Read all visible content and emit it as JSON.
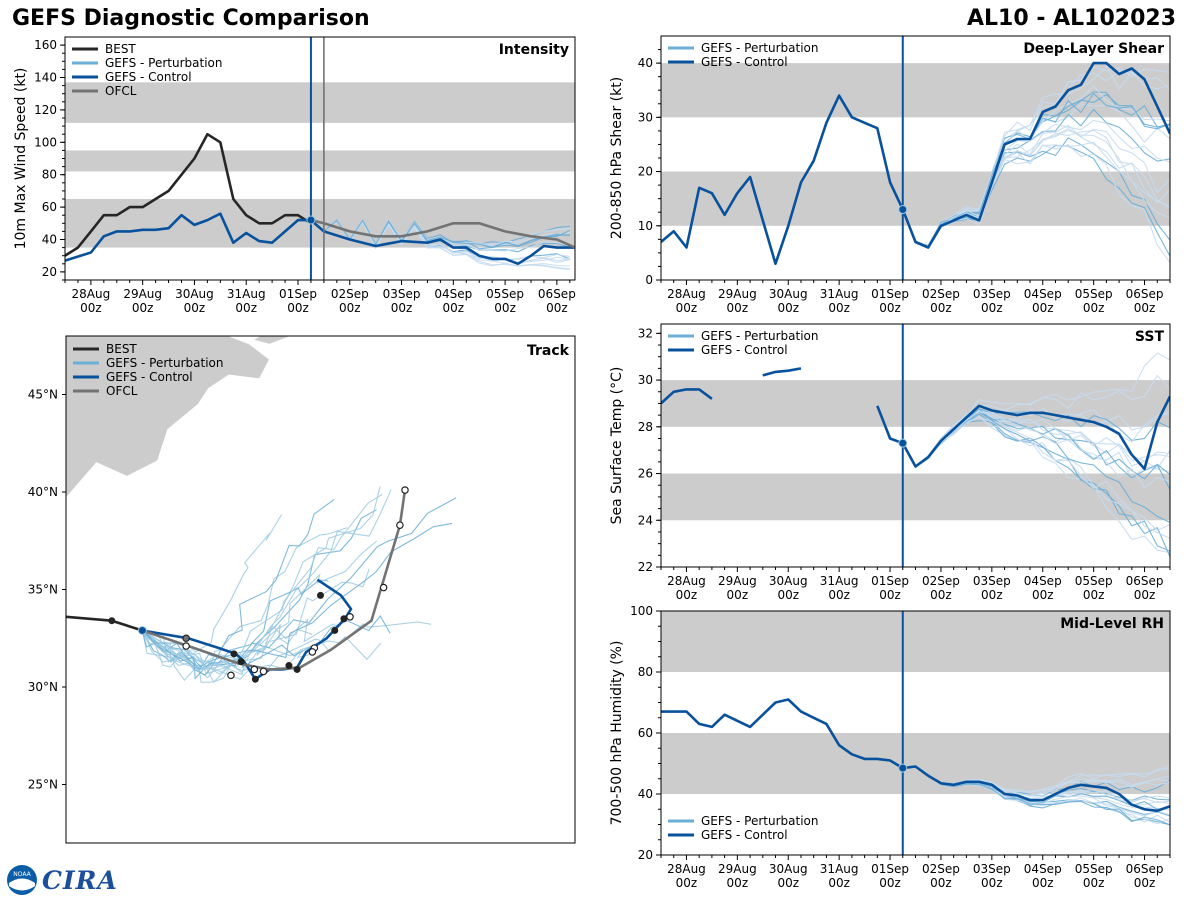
{
  "header": {
    "title_left": "GEFS Diagnostic Comparison",
    "title_right": "AL10 - AL102023"
  },
  "logo": {
    "text": "CIRA",
    "badge": "NOAA"
  },
  "colors": {
    "best": "#262626",
    "pert": "#6baed6",
    "pert_light": "#c6dbef",
    "control": "#08519c",
    "ofcl": "#737373",
    "band": "#cccccc"
  },
  "legend_labels": {
    "best": "BEST",
    "pert": "GEFS - Perturbation",
    "control": "GEFS - Control",
    "ofcl": "OFCL"
  },
  "time_ticks": [
    {
      "day": "28Aug",
      "hour": "00z",
      "t": 0
    },
    {
      "day": "29Aug",
      "hour": "00z",
      "t": 1
    },
    {
      "day": "30Aug",
      "hour": "00z",
      "t": 2
    },
    {
      "day": "31Aug",
      "hour": "00z",
      "t": 3
    },
    {
      "day": "01Sep",
      "hour": "00z",
      "t": 4
    },
    {
      "day": "02Sep",
      "hour": "00z",
      "t": 5
    },
    {
      "day": "03Sep",
      "hour": "00z",
      "t": 6
    },
    {
      "day": "04Sep",
      "hour": "00z",
      "t": 7
    },
    {
      "day": "05Sep",
      "hour": "00z",
      "t": 8
    },
    {
      "day": "06Sep",
      "hour": "00z",
      "t": 9
    }
  ],
  "chart_data": [
    {
      "id": "intensity",
      "type": "line",
      "title": "Intensity",
      "ylabel": "10m Max Wind Speed (kt)",
      "xlim": [
        -0.5,
        9.35
      ],
      "ylim": [
        15,
        165
      ],
      "yticks": [
        20,
        40,
        60,
        80,
        100,
        120,
        140,
        160
      ],
      "bands": [
        [
          35,
          65
        ],
        [
          82,
          95
        ],
        [
          112,
          137
        ]
      ],
      "init_t": 4.25,
      "ofcl_line_t": 4.5,
      "series": [
        {
          "name": "BEST",
          "x": [
            -0.5,
            -0.25,
            0,
            0.25,
            0.5,
            0.75,
            1,
            1.25,
            1.5,
            1.75,
            2,
            2.25,
            2.5,
            2.75,
            3,
            3.25,
            3.5,
            3.75,
            4,
            4.25
          ],
          "y": [
            30,
            35,
            45,
            55,
            55,
            60,
            60,
            65,
            70,
            80,
            90,
            105,
            100,
            65,
            55,
            50,
            50,
            55,
            55,
            50
          ]
        },
        {
          "name": "GEFS - Control",
          "x": [
            -0.5,
            0,
            0.25,
            0.5,
            0.75,
            1,
            1.25,
            1.5,
            1.75,
            2,
            2.25,
            2.5,
            2.75,
            3,
            3.25,
            3.5,
            3.75,
            4,
            4.25,
            4.5,
            5,
            5.5,
            6,
            6.5,
            6.75,
            7,
            7.25,
            7.5,
            7.75,
            8,
            8.25,
            8.5,
            8.75,
            9,
            9.35
          ],
          "y": [
            27,
            32,
            42,
            45,
            45,
            46,
            46,
            47,
            55,
            49,
            52,
            56,
            38,
            44,
            39,
            38,
            45,
            52,
            52,
            45,
            40,
            36,
            39,
            38,
            40,
            35,
            35,
            30,
            28,
            28,
            25,
            30,
            36,
            35,
            35
          ]
        },
        {
          "name": "OFCL",
          "x": [
            4.25,
            4.5,
            5,
            5.5,
            6,
            6.5,
            7,
            7.5,
            8,
            8.5,
            9,
            9.35
          ],
          "y": [
            52,
            50,
            45,
            42,
            42,
            45,
            50,
            50,
            45,
            42,
            40,
            35
          ]
        },
        {
          "name": "GEFS - Perturbation",
          "members": 16,
          "start_t": 4.25,
          "start_y": 52,
          "end_t": 9.35,
          "spread": [
            20,
            50
          ]
        }
      ]
    },
    {
      "id": "shear",
      "type": "line",
      "title": "Deep-Layer Shear",
      "ylabel": "200-850 hPa Shear (kt)",
      "xlim": [
        -0.5,
        9.5
      ],
      "ylim": [
        0,
        45
      ],
      "yticks": [
        0,
        10,
        20,
        30,
        40
      ],
      "bands": [
        [
          10,
          20
        ],
        [
          30,
          40
        ]
      ],
      "init_t": 4.25,
      "series": [
        {
          "name": "GEFS - Control",
          "x": [
            -0.5,
            -0.25,
            0,
            0.25,
            0.5,
            0.75,
            1,
            1.25,
            1.5,
            1.75,
            2,
            2.25,
            2.5,
            2.75,
            3,
            3.25,
            3.5,
            3.75,
            4,
            4.25,
            4.5,
            4.75,
            5,
            5.25,
            5.5,
            5.75,
            6,
            6.25,
            6.5,
            6.75,
            7,
            7.25,
            7.5,
            7.75,
            8,
            8.25,
            8.5,
            8.75,
            9,
            9.25,
            9.5
          ],
          "y": [
            7,
            9,
            6,
            17,
            16,
            12,
            16,
            19,
            11,
            3,
            10,
            18,
            22,
            29,
            34,
            30,
            29,
            28,
            18,
            13,
            7,
            6,
            10,
            11,
            12,
            11,
            18,
            25,
            26,
            26,
            31,
            32,
            35,
            36,
            40,
            40,
            38,
            39,
            37,
            32,
            27
          ]
        },
        {
          "name": "GEFS - Perturbation",
          "members": 18,
          "start_t": 4.25,
          "start_y": 13,
          "end_t": 9.5,
          "spread": [
            5,
            44
          ]
        }
      ]
    },
    {
      "id": "sst",
      "type": "line",
      "title": "SST",
      "ylabel": "Sea Surface Temp (°C)",
      "xlim": [
        -0.5,
        9.5
      ],
      "ylim": [
        22,
        32.4
      ],
      "yticks": [
        22,
        24,
        26,
        28,
        30,
        32
      ],
      "bands": [
        [
          24,
          26
        ],
        [
          28,
          30
        ]
      ],
      "init_t": 4.25,
      "series": [
        {
          "name": "GEFS - Control",
          "segments": [
            {
              "x": [
                -0.5,
                -0.25,
                0,
                0.25,
                0.5
              ],
              "y": [
                29.0,
                29.5,
                29.6,
                29.6,
                29.2
              ]
            },
            {
              "x": [
                1.5,
                1.75,
                2,
                2.25
              ],
              "y": [
                30.2,
                30.35,
                30.4,
                30.5
              ]
            },
            {
              "x": [
                3.75,
                4,
                4.25,
                4.5,
                4.75,
                5,
                5.25,
                5.5,
                5.75,
                6,
                6.25,
                6.5,
                6.75,
                7,
                7.25,
                7.5,
                7.75,
                8,
                8.25,
                8.5,
                8.75,
                9,
                9.25,
                9.5
              ],
              "y": [
                28.9,
                27.5,
                27.3,
                26.3,
                26.7,
                27.4,
                27.9,
                28.4,
                28.9,
                28.7,
                28.6,
                28.5,
                28.6,
                28.6,
                28.5,
                28.4,
                28.3,
                28.2,
                28.0,
                27.7,
                26.8,
                26.2,
                28.2,
                29.3
              ]
            }
          ]
        },
        {
          "name": "GEFS - Perturbation",
          "members": 18,
          "start_t": 4.25,
          "start_y": 27.3,
          "end_t": 9.5,
          "spread": [
            22.2,
            31.2
          ]
        }
      ]
    },
    {
      "id": "rh",
      "type": "line",
      "title": "Mid-Level RH",
      "ylabel": "700-500 hPa Humidity (%)",
      "xlim": [
        -0.5,
        9.5
      ],
      "ylim": [
        20,
        100
      ],
      "yticks": [
        20,
        40,
        60,
        80,
        100
      ],
      "bands": [
        [
          40,
          60
        ],
        [
          80,
          100
        ]
      ],
      "init_t": 4.25,
      "series": [
        {
          "name": "GEFS - Control",
          "x": [
            -0.5,
            -0.25,
            0,
            0.25,
            0.5,
            0.75,
            1,
            1.25,
            1.5,
            1.75,
            2,
            2.25,
            2.5,
            2.75,
            3,
            3.25,
            3.5,
            3.75,
            4,
            4.25,
            4.5,
            4.75,
            5,
            5.25,
            5.5,
            5.75,
            6,
            6.25,
            6.5,
            6.75,
            7,
            7.25,
            7.5,
            7.75,
            8,
            8.25,
            8.5,
            8.75,
            9,
            9.25,
            9.5
          ],
          "y": [
            67,
            67,
            67,
            63,
            62,
            66,
            64,
            62,
            66,
            70,
            71,
            67,
            65,
            63,
            56,
            53,
            51.5,
            51.5,
            51,
            48.5,
            49,
            46,
            43.5,
            43,
            44,
            44,
            43,
            40,
            39.5,
            38,
            38,
            40,
            42,
            43,
            42.5,
            42,
            40,
            36.5,
            35,
            34.5,
            36
          ]
        },
        {
          "name": "GEFS - Perturbation",
          "members": 18,
          "start_t": 4.25,
          "start_y": 48.5,
          "end_t": 9.5,
          "spread": [
            29,
            53
          ]
        }
      ]
    },
    {
      "id": "track",
      "type": "line",
      "title": "Track",
      "xlim": [
        -80,
        -30
      ],
      "ylim": [
        22,
        48
      ],
      "yticks": [
        25,
        30,
        35,
        40,
        45
      ],
      "ytick_labels": [
        "25°N",
        "30°N",
        "35°N",
        "40°N",
        "45°N"
      ],
      "series": [
        {
          "name": "BEST",
          "lon": [
            -80,
            -75.5,
            -72.5
          ],
          "lat": [
            33.6,
            33.4,
            32.9
          ]
        },
        {
          "name": "GEFS - Control",
          "lon": [
            -72.5,
            -68,
            -65,
            -63.3,
            -62.5,
            -61.4,
            -60,
            -58.8,
            -57.3,
            -56.4,
            -54.4,
            -52.6,
            -52.0,
            -53,
            -55.3
          ],
          "lat": [
            32.9,
            32.5,
            32.0,
            31.7,
            31.3,
            30.4,
            30.9,
            30.9,
            31.0,
            31.8,
            32.5,
            33.5,
            34.0,
            34.7,
            35.5
          ]
        },
        {
          "name": "OFCL",
          "lon": [
            -72.5,
            -68,
            -63,
            -60,
            -57,
            -54,
            -50,
            -47.2,
            -46.7
          ],
          "lat": [
            32.9,
            32.1,
            31.2,
            30.9,
            31.0,
            31.9,
            33.4,
            38.3,
            40.1
          ]
        },
        {
          "name": "GEFS - Perturbation",
          "members": 18,
          "start_lon": -72.5,
          "start_lat": 32.9
        }
      ],
      "best_points": [
        [
          -75.5,
          33.4
        ],
        [
          -72.5,
          32.9
        ]
      ],
      "control_points": [
        [
          -63.5,
          31.7
        ],
        [
          -62.8,
          31.3
        ],
        [
          -61.4,
          30.4
        ],
        [
          -58.1,
          31.1
        ],
        [
          -57.3,
          30.9
        ],
        [
          -53.6,
          32.9
        ],
        [
          -52.7,
          33.5
        ],
        [
          -55.0,
          34.7
        ]
      ],
      "ofcl_points": [
        [
          -68.2,
          32.5
        ],
        [
          -68.2,
          32.1
        ],
        [
          -63.8,
          30.6
        ],
        [
          -61.5,
          30.9
        ],
        [
          -60.6,
          30.8
        ],
        [
          -55.6,
          32.0
        ],
        [
          -55.8,
          31.8
        ],
        [
          -52.1,
          33.6
        ],
        [
          -48.8,
          35.1
        ],
        [
          -47.2,
          38.3
        ],
        [
          -46.7,
          40.1
        ]
      ]
    }
  ]
}
